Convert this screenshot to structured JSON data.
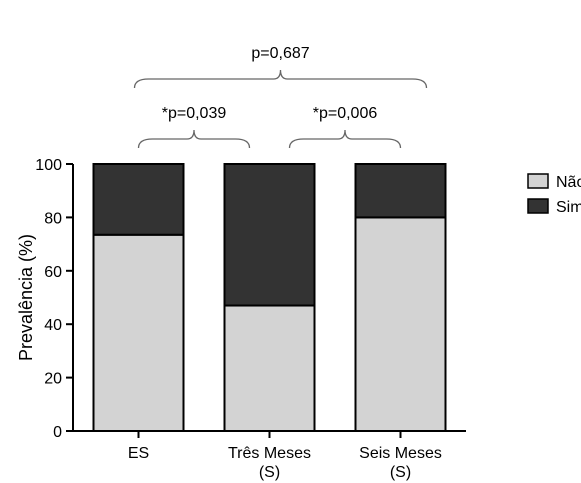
{
  "chart_data": {
    "type": "bar",
    "stacked": true,
    "ylabel": "Prevalência (%)",
    "xlabel": "",
    "ylim": [
      0,
      100
    ],
    "yticks": [
      0,
      20,
      40,
      60,
      80,
      100
    ],
    "categories": [
      [
        "ES"
      ],
      [
        "Três Meses",
        "(S)"
      ],
      [
        "Seis Meses",
        "(S)"
      ]
    ],
    "series": [
      {
        "name": "Não",
        "values": [
          73.5,
          47,
          80
        ],
        "color": "#d3d3d3"
      },
      {
        "name": "Sim",
        "values": [
          26.5,
          53,
          20
        ],
        "color": "#333333"
      }
    ],
    "legend_position": "right",
    "grid": false,
    "annotations": [
      {
        "text": "p=0,687",
        "from": 0,
        "to": 2,
        "level": 2
      },
      {
        "text": "*p=0,039",
        "from": 0,
        "to": 1,
        "level": 1
      },
      {
        "text": "*p=0,006",
        "from": 1,
        "to": 2,
        "level": 1
      }
    ]
  }
}
